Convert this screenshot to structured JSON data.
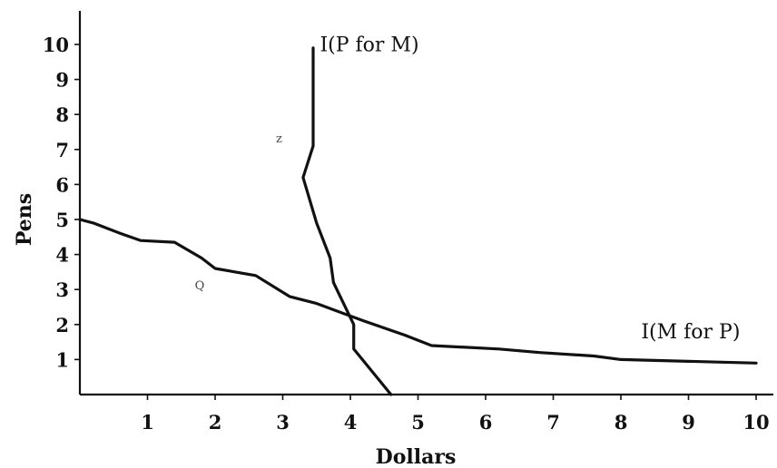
{
  "chart_data": {
    "type": "line",
    "xlabel": "Dollars",
    "ylabel": "Pens",
    "xlim": [
      0,
      10
    ],
    "ylim": [
      0,
      10
    ],
    "xticks": [
      1,
      2,
      3,
      4,
      5,
      6,
      7,
      8,
      9,
      10
    ],
    "yticks": [
      1,
      2,
      3,
      4,
      5,
      6,
      7,
      8,
      9,
      10
    ],
    "grid": false,
    "legend": "none",
    "series": [
      {
        "name": "I(M for P)",
        "points": [
          [
            0,
            5.0
          ],
          [
            0.2,
            4.9
          ],
          [
            0.6,
            4.6
          ],
          [
            0.9,
            4.4
          ],
          [
            1.4,
            4.35
          ],
          [
            1.8,
            3.9
          ],
          [
            2.0,
            3.6
          ],
          [
            2.6,
            3.4
          ],
          [
            3.1,
            2.8
          ],
          [
            3.5,
            2.6
          ],
          [
            4.2,
            2.1
          ],
          [
            4.8,
            1.7
          ],
          [
            5.2,
            1.4
          ],
          [
            6.2,
            1.3
          ],
          [
            6.8,
            1.2
          ],
          [
            7.6,
            1.1
          ],
          [
            8.0,
            1.0
          ],
          [
            10.0,
            0.9
          ]
        ]
      },
      {
        "name": "I(P for M)",
        "points": [
          [
            4.6,
            0.0
          ],
          [
            4.05,
            1.3
          ],
          [
            4.05,
            2.0
          ],
          [
            3.85,
            2.8
          ],
          [
            3.75,
            3.2
          ],
          [
            3.7,
            3.9
          ],
          [
            3.5,
            4.9
          ],
          [
            3.3,
            6.2
          ],
          [
            3.45,
            7.1
          ],
          [
            3.45,
            9.9
          ]
        ]
      }
    ],
    "annotations": [
      {
        "text": "I(P for M)",
        "x": 3.55,
        "y": 9.8
      },
      {
        "text": "I(M for P)",
        "x": 8.3,
        "y": 1.6
      },
      {
        "text": "Q",
        "x": 1.7,
        "y": 3.0
      },
      {
        "text": "z",
        "x": 2.9,
        "y": 7.2
      }
    ]
  }
}
